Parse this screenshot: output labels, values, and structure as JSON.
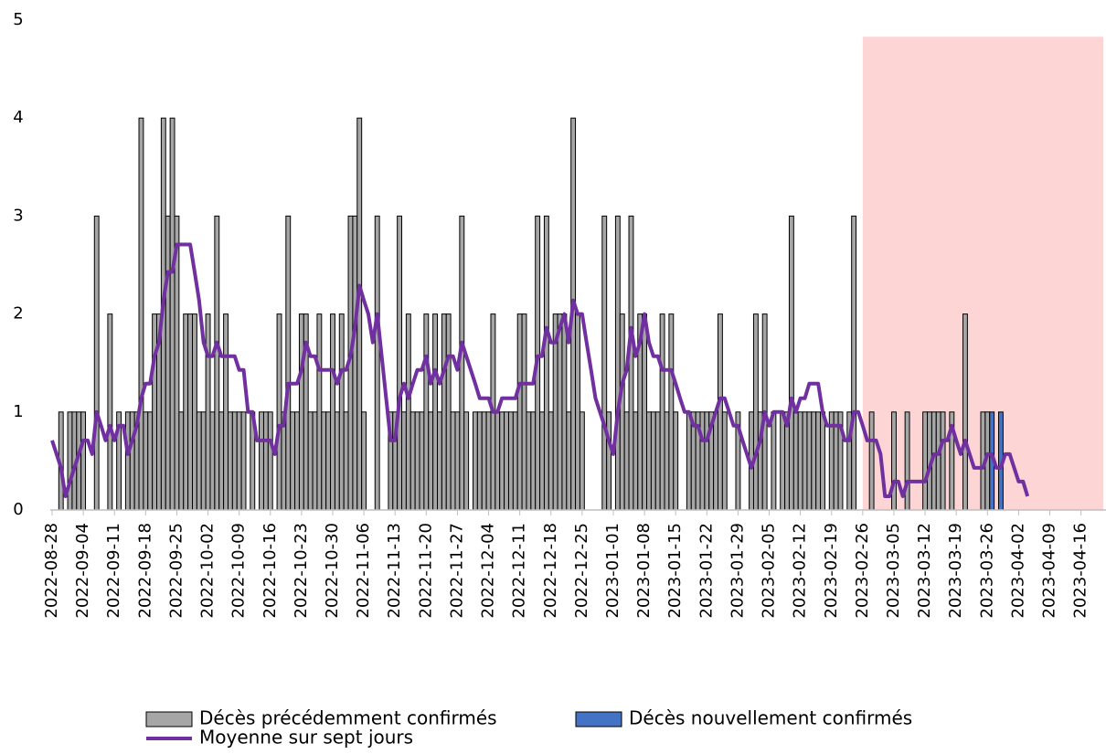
{
  "chart_data": {
    "type": "bar-line",
    "x": [
      "2022-08-28",
      "2022-08-29",
      "2022-08-30",
      "2022-08-31",
      "2022-09-01",
      "2022-09-02",
      "2022-09-03",
      "2022-09-04",
      "2022-09-05",
      "2022-09-06",
      "2022-09-07",
      "2022-09-08",
      "2022-09-09",
      "2022-09-10",
      "2022-09-11",
      "2022-09-12",
      "2022-09-13",
      "2022-09-14",
      "2022-09-15",
      "2022-09-16",
      "2022-09-17",
      "2022-09-18",
      "2022-09-19",
      "2022-09-20",
      "2022-09-21",
      "2022-09-22",
      "2022-09-23",
      "2022-09-24",
      "2022-09-25",
      "2022-09-26",
      "2022-09-27",
      "2022-09-28",
      "2022-09-29",
      "2022-09-30",
      "2022-10-01",
      "2022-10-02",
      "2022-10-03",
      "2022-10-04",
      "2022-10-05",
      "2022-10-06",
      "2022-10-07",
      "2022-10-08",
      "2022-10-09",
      "2022-10-10",
      "2022-10-11",
      "2022-10-12",
      "2022-10-13",
      "2022-10-14",
      "2022-10-15",
      "2022-10-16",
      "2022-10-17",
      "2022-10-18",
      "2022-10-19",
      "2022-10-20",
      "2022-10-21",
      "2022-10-22",
      "2022-10-23",
      "2022-10-24",
      "2022-10-25",
      "2022-10-26",
      "2022-10-27",
      "2022-10-28",
      "2022-10-29",
      "2022-10-30",
      "2022-10-31",
      "2022-11-01",
      "2022-11-02",
      "2022-11-03",
      "2022-11-04",
      "2022-11-05",
      "2022-11-06",
      "2022-11-07",
      "2022-11-08",
      "2022-11-09",
      "2022-11-10",
      "2022-11-11",
      "2022-11-12",
      "2022-11-13",
      "2022-11-14",
      "2022-11-15",
      "2022-11-16",
      "2022-11-17",
      "2022-11-18",
      "2022-11-19",
      "2022-11-20",
      "2022-11-21",
      "2022-11-22",
      "2022-11-23",
      "2022-11-24",
      "2022-11-25",
      "2022-11-26",
      "2022-11-27",
      "2022-11-28",
      "2022-11-29",
      "2022-11-30",
      "2022-12-01",
      "2022-12-02",
      "2022-12-03",
      "2022-12-04",
      "2022-12-05",
      "2022-12-06",
      "2022-12-07",
      "2022-12-08",
      "2022-12-09",
      "2022-12-10",
      "2022-12-11",
      "2022-12-12",
      "2022-12-13",
      "2022-12-14",
      "2022-12-15",
      "2022-12-16",
      "2022-12-17",
      "2022-12-18",
      "2022-12-19",
      "2022-12-20",
      "2022-12-21",
      "2022-12-22",
      "2022-12-23",
      "2022-12-24",
      "2022-12-25",
      "2022-12-26",
      "2022-12-27",
      "2022-12-28",
      "2022-12-29",
      "2022-12-30",
      "2022-12-31",
      "2023-01-01",
      "2023-01-02",
      "2023-01-03",
      "2023-01-04",
      "2023-01-05",
      "2023-01-06",
      "2023-01-07",
      "2023-01-08",
      "2023-01-09",
      "2023-01-10",
      "2023-01-11",
      "2023-01-12",
      "2023-01-13",
      "2023-01-14",
      "2023-01-15",
      "2023-01-16",
      "2023-01-17",
      "2023-01-18",
      "2023-01-19",
      "2023-01-20",
      "2023-01-21",
      "2023-01-22",
      "2023-01-23",
      "2023-01-24",
      "2023-01-25",
      "2023-01-26",
      "2023-01-27",
      "2023-01-28",
      "2023-01-29",
      "2023-01-30",
      "2023-01-31",
      "2023-02-01",
      "2023-02-02",
      "2023-02-03",
      "2023-02-04",
      "2023-02-05",
      "2023-02-06",
      "2023-02-07",
      "2023-02-08",
      "2023-02-09",
      "2023-02-10",
      "2023-02-11",
      "2023-02-12",
      "2023-02-13",
      "2023-02-14",
      "2023-02-15",
      "2023-02-16",
      "2023-02-17",
      "2023-02-18",
      "2023-02-19",
      "2023-02-20",
      "2023-02-21",
      "2023-02-22",
      "2023-02-23",
      "2023-02-24",
      "2023-02-25",
      "2023-02-26",
      "2023-02-27",
      "2023-02-28",
      "2023-03-01",
      "2023-03-02",
      "2023-03-03",
      "2023-03-04",
      "2023-03-05",
      "2023-03-06",
      "2023-03-07",
      "2023-03-08",
      "2023-03-09",
      "2023-03-10",
      "2023-03-11",
      "2023-03-12",
      "2023-03-13",
      "2023-03-14",
      "2023-03-15",
      "2023-03-16",
      "2023-03-17",
      "2023-03-18",
      "2023-03-19",
      "2023-03-20",
      "2023-03-21",
      "2023-03-22",
      "2023-03-23",
      "2023-03-24",
      "2023-03-25",
      "2023-03-26",
      "2023-03-27",
      "2023-03-28",
      "2023-03-29",
      "2023-03-30",
      "2023-03-31",
      "2023-04-01",
      "2023-04-02",
      "2023-04-03",
      "2023-04-04"
    ],
    "series": [
      {
        "name": "Décès précédemment confirmés",
        "kind": "bar",
        "color": "#a6a6a6",
        "values": [
          0,
          0,
          1,
          0,
          1,
          1,
          1,
          1,
          0,
          0,
          3,
          0,
          0,
          2,
          0,
          1,
          0,
          1,
          1,
          1,
          4,
          1,
          1,
          2,
          2,
          4,
          3,
          4,
          3,
          1,
          2,
          2,
          2,
          1,
          1,
          2,
          1,
          3,
          1,
          2,
          1,
          1,
          1,
          1,
          0,
          1,
          0,
          1,
          1,
          1,
          0,
          2,
          1,
          3,
          1,
          1,
          2,
          2,
          1,
          1,
          2,
          1,
          1,
          2,
          1,
          2,
          1,
          3,
          3,
          4,
          1,
          0,
          0,
          3,
          0,
          0,
          1,
          1,
          3,
          1,
          2,
          1,
          1,
          1,
          2,
          1,
          2,
          1,
          2,
          2,
          1,
          1,
          3,
          1,
          0,
          1,
          1,
          1,
          1,
          2,
          1,
          1,
          1,
          1,
          1,
          2,
          2,
          1,
          1,
          3,
          1,
          3,
          1,
          2,
          2,
          2,
          1,
          4,
          2,
          1,
          0,
          0,
          0,
          0,
          3,
          1,
          0,
          3,
          2,
          1,
          3,
          1,
          2,
          2,
          1,
          1,
          1,
          2,
          1,
          2,
          1,
          0,
          0,
          1,
          1,
          1,
          1,
          1,
          1,
          1,
          2,
          1,
          0,
          0,
          1,
          0,
          0,
          1,
          2,
          1,
          2,
          0,
          1,
          0,
          1,
          1,
          3,
          1,
          1,
          1,
          1,
          1,
          1,
          1,
          0,
          1,
          1,
          1,
          0,
          1,
          3,
          0,
          0,
          0,
          1,
          0,
          0,
          0,
          0,
          1,
          0,
          0,
          1,
          0,
          0,
          0,
          1,
          1,
          1,
          1,
          1,
          0,
          1,
          0,
          0,
          2,
          0,
          0,
          0,
          1,
          1,
          0,
          0,
          0,
          0,
          0,
          0,
          0,
          0,
          0
        ]
      },
      {
        "name": "Décès nouvellement confirmés",
        "kind": "bar",
        "color": "#4472c4",
        "values": [
          0,
          0,
          0,
          0,
          0,
          0,
          0,
          0,
          0,
          0,
          0,
          0,
          0,
          0,
          0,
          0,
          0,
          0,
          0,
          0,
          0,
          0,
          0,
          0,
          0,
          0,
          0,
          0,
          0,
          0,
          0,
          0,
          0,
          0,
          0,
          0,
          0,
          0,
          0,
          0,
          0,
          0,
          0,
          0,
          0,
          0,
          0,
          0,
          0,
          0,
          0,
          0,
          0,
          0,
          0,
          0,
          0,
          0,
          0,
          0,
          0,
          0,
          0,
          0,
          0,
          0,
          0,
          0,
          0,
          0,
          0,
          0,
          0,
          0,
          0,
          0,
          0,
          0,
          0,
          0,
          0,
          0,
          0,
          0,
          0,
          0,
          0,
          0,
          0,
          0,
          0,
          0,
          0,
          0,
          0,
          0,
          0,
          0,
          0,
          0,
          0,
          0,
          0,
          0,
          0,
          0,
          0,
          0,
          0,
          0,
          0,
          0,
          0,
          0,
          0,
          0,
          0,
          0,
          0,
          0,
          0,
          0,
          0,
          0,
          0,
          0,
          0,
          0,
          0,
          0,
          0,
          0,
          0,
          0,
          0,
          0,
          0,
          0,
          0,
          0,
          0,
          0,
          0,
          0,
          0,
          0,
          0,
          0,
          0,
          0,
          0,
          0,
          0,
          0,
          0,
          0,
          0,
          0,
          0,
          0,
          0,
          0,
          0,
          0,
          0,
          0,
          0,
          0,
          0,
          0,
          0,
          0,
          0,
          0,
          0,
          0,
          0,
          0,
          0,
          0,
          0,
          0,
          0,
          0,
          0,
          0,
          0,
          0,
          0,
          0,
          0,
          0,
          0,
          0,
          0,
          0,
          0,
          0,
          0,
          0,
          0,
          0,
          0,
          0,
          0,
          0,
          0,
          0,
          0,
          0,
          0,
          1,
          0,
          1,
          0,
          0,
          0,
          0,
          0,
          0
        ]
      },
      {
        "name": "Moyenne sur sept jours",
        "kind": "line",
        "color": "#7030a0",
        "values": [
          0.71,
          0.57,
          0.43,
          0.14,
          0.29,
          0.43,
          0.57,
          0.71,
          0.71,
          0.57,
          1,
          0.86,
          0.71,
          0.86,
          0.71,
          0.86,
          0.86,
          0.57,
          0.71,
          0.86,
          1.14,
          1.29,
          1.29,
          1.57,
          1.71,
          2.14,
          2.43,
          2.43,
          2.71,
          2.71,
          2.71,
          2.71,
          2.43,
          2.14,
          1.71,
          1.57,
          1.57,
          1.71,
          1.57,
          1.57,
          1.57,
          1.57,
          1.43,
          1.43,
          1,
          1,
          0.71,
          0.71,
          0.71,
          0.71,
          0.57,
          0.86,
          0.86,
          1.29,
          1.29,
          1.29,
          1.43,
          1.71,
          1.57,
          1.57,
          1.43,
          1.43,
          1.43,
          1.43,
          1.29,
          1.43,
          1.43,
          1.57,
          1.86,
          2.29,
          2.14,
          2,
          1.71,
          2,
          1.57,
          1.14,
          0.71,
          0.71,
          1.14,
          1.29,
          1.14,
          1.29,
          1.43,
          1.43,
          1.57,
          1.29,
          1.43,
          1.29,
          1.43,
          1.57,
          1.57,
          1.43,
          1.71,
          1.57,
          1.43,
          1.29,
          1.14,
          1.14,
          1.14,
          1,
          1,
          1.14,
          1.14,
          1.14,
          1.14,
          1.29,
          1.29,
          1.29,
          1.29,
          1.57,
          1.57,
          1.86,
          1.71,
          1.71,
          1.86,
          2,
          1.71,
          2.14,
          2,
          2,
          1.71,
          1.43,
          1.14,
          1,
          0.86,
          0.71,
          0.57,
          1,
          1.29,
          1.43,
          1.86,
          1.57,
          1.71,
          2,
          1.71,
          1.57,
          1.57,
          1.43,
          1.43,
          1.43,
          1.29,
          1.14,
          1,
          1,
          0.86,
          0.86,
          0.71,
          0.71,
          0.86,
          1,
          1.14,
          1.14,
          1,
          0.86,
          0.86,
          0.71,
          0.57,
          0.43,
          0.57,
          0.71,
          1,
          0.86,
          1,
          1,
          1,
          0.86,
          1.14,
          1,
          1.14,
          1.14,
          1.29,
          1.29,
          1.29,
          1,
          0.86,
          0.86,
          0.86,
          0.86,
          0.71,
          0.71,
          1,
          1,
          0.86,
          0.71,
          0.71,
          0.71,
          0.57,
          0.14,
          0.14,
          0.29,
          0.29,
          0.14,
          0.29,
          0.29,
          0.29,
          0.29,
          0.29,
          0.43,
          0.57,
          0.57,
          0.71,
          0.71,
          0.86,
          0.71,
          0.57,
          0.71,
          0.57,
          0.43,
          0.43,
          0.43,
          0.57,
          0.57,
          0.43,
          0.43,
          0.57,
          0.57,
          0.43,
          0.29,
          0.29,
          0.14
        ]
      }
    ],
    "xlim": [
      "2022-08-28",
      "2023-04-21"
    ],
    "xticks": [
      "2022-08-28",
      "2022-09-04",
      "2022-09-11",
      "2022-09-18",
      "2022-09-25",
      "2022-10-02",
      "2022-10-09",
      "2022-10-16",
      "2022-10-23",
      "2022-10-30",
      "2022-11-06",
      "2022-11-13",
      "2022-11-20",
      "2022-11-27",
      "2022-12-04",
      "2022-12-11",
      "2022-12-18",
      "2022-12-25",
      "2023-01-01",
      "2023-01-08",
      "2023-01-15",
      "2023-01-22",
      "2023-01-29",
      "2023-02-05",
      "2023-02-12",
      "2023-02-19",
      "2023-02-26",
      "2023-03-05",
      "2023-03-12",
      "2023-03-19",
      "2023-03-26",
      "2023-04-02",
      "2023-04-09",
      "2023-04-16"
    ],
    "ylim": [
      0,
      5
    ],
    "yticks": [
      0,
      1,
      2,
      3,
      4,
      5
    ],
    "highlight": {
      "from": "2023-02-26",
      "to": "2023-04-21",
      "top": 4.83,
      "color": "#fdd5d5"
    },
    "legend": "bottom"
  }
}
